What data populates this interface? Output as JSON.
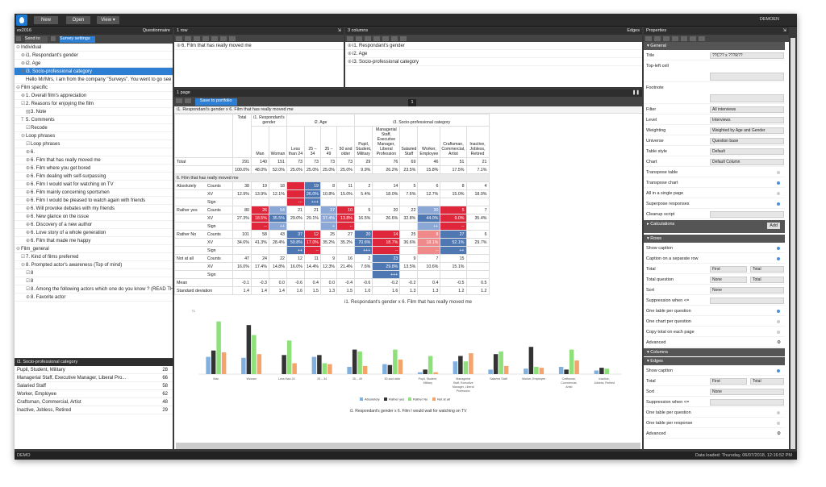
{
  "topbar": {
    "new": "New",
    "open": "Open",
    "view": "View ▾",
    "user": "DEMOEN"
  },
  "left": {
    "survey_name": "ex2016",
    "questionnaire": "Questionnaire",
    "send_to": "Send to",
    "survey_settings": "Survey settings",
    "tree": [
      {
        "t": "Individual",
        "ind": 0,
        "pm": "⊖"
      },
      {
        "t": "i1. Respondant's gender",
        "ind": 1,
        "pm": "⊕"
      },
      {
        "t": "i2. Age",
        "ind": 1,
        "pm": "⊕"
      },
      {
        "t": "i3. Socio-professional category",
        "ind": 1,
        "pm": "⊕",
        "sel": true
      },
      {
        "t": "Hello Mr/Mrs, I am from the company \"Surveys\". You went to go see",
        "ind": 1,
        "pm": ""
      },
      {
        "t": "Film specific",
        "ind": 0,
        "pm": "⊖"
      },
      {
        "t": "1. Overall film's appreciation",
        "ind": 1,
        "pm": "⊕"
      },
      {
        "t": "2. Reasons for enjoying the film",
        "ind": 1,
        "pm": "☑"
      },
      {
        "t": "3. Note",
        "ind": 2,
        "pm": "▤"
      },
      {
        "t": "5. Comments",
        "ind": 1,
        "pm": "T"
      },
      {
        "t": "Recode",
        "ind": 2,
        "pm": "☑"
      },
      {
        "t": "Loop phrases",
        "ind": 1,
        "pm": "⊖"
      },
      {
        "t": "Loop phrases",
        "ind": 2,
        "pm": "☑"
      },
      {
        "t": "6.",
        "ind": 2,
        "pm": "⊕"
      },
      {
        "t": "6. Film that has really moved me",
        "ind": 2,
        "pm": "⊕"
      },
      {
        "t": "6. Film where you get bored",
        "ind": 2,
        "pm": "⊕"
      },
      {
        "t": "6. Film dealing with self-surpassing",
        "ind": 2,
        "pm": "⊕"
      },
      {
        "t": "6. Film I would wait for watching on TV",
        "ind": 2,
        "pm": "⊕"
      },
      {
        "t": "6. Film mainly concerning sportsmen",
        "ind": 2,
        "pm": "⊕"
      },
      {
        "t": "6. Film I would be pleased to watch again with friends",
        "ind": 2,
        "pm": "⊕"
      },
      {
        "t": "6. Will provoke debates with my friends",
        "ind": 2,
        "pm": "⊕"
      },
      {
        "t": "6. New glance on the issue",
        "ind": 2,
        "pm": "⊕"
      },
      {
        "t": "6. Discovery of a new author",
        "ind": 2,
        "pm": "⊕"
      },
      {
        "t": "6. Love story of a whole generation",
        "ind": 2,
        "pm": "⊕"
      },
      {
        "t": "6. Film that made me happy",
        "ind": 2,
        "pm": "⊕"
      },
      {
        "t": "Film_general",
        "ind": 0,
        "pm": "⊖"
      },
      {
        "t": "7. Kind of films preferred",
        "ind": 1,
        "pm": "☑"
      },
      {
        "t": "8. Prompted actor's awareness (Top of mind)",
        "ind": 1,
        "pm": "⊖"
      },
      {
        "t": "8",
        "ind": 2,
        "pm": "☑"
      },
      {
        "t": "8",
        "ind": 2,
        "pm": "☑"
      },
      {
        "t": "8. Among the following actors which one do you know ? (READ TH",
        "ind": 2,
        "pm": "☑"
      },
      {
        "t": "8. Favorite actor",
        "ind": 2,
        "pm": "⊕"
      }
    ],
    "bottom_title": "i3. Socio-professional category",
    "bottom_list": [
      {
        "t": "Pupil, Student, Military",
        "n": "28"
      },
      {
        "t": "Managerial Staff, Executive Manager, Liberal Pro...",
        "n": "66"
      },
      {
        "t": "Salaried Staff",
        "n": "58"
      },
      {
        "t": "Worker, Employee",
        "n": "62"
      },
      {
        "t": "Craftsman, Commercial, Artist",
        "n": "48"
      },
      {
        "t": "Inactive, Jobless, Retired",
        "n": "29"
      }
    ]
  },
  "rows_panel": {
    "title": "1 row",
    "item": "6. Film that has really moved me"
  },
  "cols_panel": {
    "title": "3 columns",
    "edges": "Edges",
    "items": [
      "i1. Respondant's gender",
      "i2. Age",
      "i3. Socio-professional category"
    ]
  },
  "page": {
    "title": "1 page",
    "save": "Save to portfolio",
    "page_num": "1",
    "table_title": "i1. Respondant's gender x 6. Film that has really moved me"
  },
  "table": {
    "h_total": "Total",
    "h_gender": "i1. Respondant's gender",
    "h_age": "i2. Age",
    "h_socio": "i3. Socio-professional category",
    "cols": [
      "Man",
      "Woman",
      "Less than 24",
      "25 – 34",
      "35 – 49",
      "50 and older",
      "Pupil, Student, Military",
      "Managerial Staff, Executive Manager, Liberal Profession",
      "Salaried Staff",
      "Worker, Employee",
      "Craftsman, Commercial, Artist",
      "Inactive, Jobless, Retired"
    ],
    "total_label": "Total",
    "total_counts": [
      "291",
      "140",
      "151",
      "73",
      "73",
      "73",
      "73",
      "29",
      "76",
      "69",
      "46",
      "51",
      "21"
    ],
    "total_pct": [
      "100.0%",
      "48.0%",
      "52.0%",
      "25.0%",
      "25.0%",
      "25.0%",
      "25.0%",
      "9.9%",
      "26.2%",
      "23.5%",
      "15.8%",
      "17.5%",
      "7.1%"
    ],
    "section": "6. Film that has really moved me",
    "groups": [
      {
        "label": "Absolutely",
        "counts": [
          "38",
          "19",
          "18",
          "",
          "19",
          "8",
          "11",
          "2",
          "14",
          "5",
          "6",
          "8",
          "4"
        ],
        "xv": [
          "12.9%",
          "13.9%",
          "12.1%",
          "",
          "26.0%",
          "10.8%",
          "15.0%",
          "5.4%",
          "18.0%",
          "7.6%",
          "12.7%",
          "15.0%",
          "18.0%"
        ],
        "sign": [
          "",
          "",
          "",
          "---",
          "+++",
          "",
          "",
          "",
          "",
          "",
          "",
          "",
          ""
        ],
        "cc": [
          "",
          "",
          "",
          "red",
          "blue",
          "",
          "",
          "",
          "",
          "",
          "",
          "",
          ""
        ],
        "cx": [
          "",
          "",
          "",
          "red",
          "blue",
          "",
          "",
          "",
          "",
          "",
          "",
          "",
          ""
        ]
      },
      {
        "label": "Rather yes",
        "counts": [
          "80",
          "26",
          "54",
          "21",
          "21",
          "27",
          "10",
          "5",
          "20",
          "22",
          "30",
          "5",
          "7"
        ],
        "xv": [
          "27.3%",
          "18.5%",
          "35.5%",
          "29.0%",
          "29.1%",
          "37.4%",
          "13.8%",
          "16.5%",
          "26.6%",
          "32.8%",
          "44.0%",
          "9.0%",
          "35.4%"
        ],
        "sign": [
          "",
          "--",
          "++",
          "",
          "",
          "+",
          "--",
          "",
          "",
          "",
          "++",
          "--",
          ""
        ],
        "cc": [
          "",
          "red",
          "lblue",
          "",
          "",
          "lblue",
          "red",
          "",
          "",
          "",
          "lblue",
          "red",
          ""
        ],
        "cx": [
          "",
          "red",
          "blue",
          "",
          "",
          "lblue",
          "red",
          "",
          "",
          "",
          "blue",
          "red",
          ""
        ]
      },
      {
        "label": "Rather No",
        "counts": [
          "101",
          "58",
          "43",
          "37",
          "12",
          "25",
          "27",
          "20",
          "14",
          "25",
          "8",
          "27",
          "6"
        ],
        "xv": [
          "34.6%",
          "41.3%",
          "28.4%",
          "50.8%",
          "17.0%",
          "35.2%",
          "35.2%",
          "70.6%",
          "18.7%",
          "36.6%",
          "18.1%",
          "52.1%",
          "29.7%"
        ],
        "sign": [
          "",
          "",
          "",
          "++",
          "--",
          "",
          "",
          "+++",
          "--",
          "",
          "--",
          "++",
          ""
        ],
        "cc": [
          "",
          "",
          "",
          "blue",
          "red",
          "",
          "",
          "blue",
          "red",
          "",
          "lred",
          "blue",
          ""
        ],
        "cx": [
          "",
          "",
          "",
          "blue",
          "red",
          "",
          "",
          "blue",
          "red",
          "",
          "lred",
          "blue",
          ""
        ]
      },
      {
        "label": "Not at all",
        "counts": [
          "47",
          "24",
          "22",
          "12",
          "11",
          "9",
          "16",
          "2",
          "23",
          "9",
          "7",
          "15",
          ""
        ],
        "xv": [
          "16.0%",
          "17.4%",
          "14.8%",
          "16.0%",
          "14.4%",
          "12.3%",
          "21.4%",
          "7.6%",
          "29.8%",
          "13.5%",
          "10.6%",
          "15.1%",
          ""
        ],
        "sign": [
          "",
          "",
          "",
          "",
          "",
          "",
          "",
          "",
          "+++",
          "",
          "",
          "",
          ""
        ],
        "cc": [
          "",
          "",
          "",
          "",
          "",
          "",
          "",
          "",
          "blue",
          "",
          "",
          "",
          ""
        ],
        "cx": [
          "",
          "",
          "",
          "",
          "",
          "",
          "",
          "",
          "blue",
          "",
          "",
          "",
          ""
        ]
      }
    ],
    "mean_label": "Mean",
    "mean": [
      "-0.1",
      "-0.3",
      "0.0",
      "-0.6",
      "0.4",
      "0.0",
      "-0.4",
      "-0.6",
      "-0.2",
      "-0.2",
      "0.4",
      "-0.5",
      "0.5"
    ],
    "sd_label": "Standard deviation",
    "sd": [
      "1.4",
      "1.4",
      "1.4",
      "1.6",
      "1.5",
      "1.3",
      "1.5",
      "1.0",
      "1.6",
      "1.3",
      "1.3",
      "1.2",
      "1.2"
    ],
    "lbl_counts": "Counts",
    "lbl_xv": "XV",
    "lbl_sign": "Sign"
  },
  "chart_data": {
    "type": "bar",
    "title": "i1. Respondant's gender x 6. Film that has really moved me",
    "categories": [
      "Man",
      "Woman",
      "Less than 24",
      "25 – 34",
      "35 – 49",
      "50 and older",
      "Pupil, Student, Military",
      "Managerial Staff, Executive Manager, Liberal Profession",
      "Salaried Staff",
      "Worker, Employee",
      "Craftsman, Commercial, Artist",
      "Inactive, Jobless, Retired"
    ],
    "series": [
      {
        "name": "Absolutely",
        "color": "#7fb0e0",
        "values": [
          19,
          18,
          0,
          19,
          8,
          11,
          2,
          14,
          5,
          6,
          8,
          4
        ]
      },
      {
        "name": "Rather yes",
        "color": "#333333",
        "values": [
          26,
          54,
          21,
          21,
          27,
          10,
          5,
          20,
          22,
          30,
          5,
          7
        ]
      },
      {
        "name": "Rather No",
        "color": "#8ee07a",
        "values": [
          58,
          43,
          37,
          12,
          25,
          27,
          20,
          14,
          25,
          8,
          27,
          6
        ]
      },
      {
        "name": "Not at all",
        "color": "#f4a46a",
        "values": [
          24,
          22,
          12,
          11,
          9,
          16,
          2,
          23,
          9,
          7,
          15,
          0
        ]
      }
    ],
    "ylim": [
      0,
      71
    ],
    "y_ticks": [
      "71"
    ],
    "footer": "i1. Respondant's gender x 6. Film I would wait for watching on TV"
  },
  "props": {
    "title": "Properties",
    "general": "General",
    "items": [
      {
        "k": "Title",
        "v": "??C?? x ???R??",
        "type": "box"
      },
      {
        "k": "Top-left cell",
        "v": "",
        "type": "area"
      },
      {
        "k": "Footnote",
        "v": "",
        "type": "area"
      },
      {
        "k": "Filter",
        "v": "All interviews",
        "type": "sel"
      },
      {
        "k": "Level",
        "v": "Interviews",
        "type": "sel"
      },
      {
        "k": "Weighting",
        "v": "Weighted by Age and Gender",
        "type": "sel"
      },
      {
        "k": "Universe",
        "v": "Question base",
        "type": "sel"
      },
      {
        "k": "Table style",
        "v": "Default",
        "type": "sel"
      },
      {
        "k": "Chart",
        "v": "Default Column",
        "type": "sel"
      },
      {
        "k": "Transpose table",
        "v": "",
        "type": "chk"
      },
      {
        "k": "Transpose chart",
        "v": "",
        "type": "on"
      },
      {
        "k": "All in a single page",
        "v": "",
        "type": "chk"
      },
      {
        "k": "Superpose responses",
        "v": "",
        "type": "on"
      },
      {
        "k": "Cleanup script",
        "v": "",
        "type": "box"
      }
    ],
    "calculations": "Calculations",
    "add": "Add",
    "rows": "Rows",
    "row_items": [
      {
        "k": "Show caption",
        "type": "on"
      },
      {
        "k": "Caption on a separate row",
        "type": "on"
      },
      {
        "k": "Total",
        "type": "first",
        "v": "First",
        "v2": "Total"
      },
      {
        "k": "Total question",
        "type": "first",
        "v": "None",
        "v2": "Total"
      },
      {
        "k": "Sort",
        "type": "sel",
        "v": "None"
      },
      {
        "k": "Suppression when <=",
        "type": "box"
      },
      {
        "k": "One table per question",
        "type": "on"
      },
      {
        "k": "One chart per question",
        "type": "chk"
      },
      {
        "k": "Copy total on each page",
        "type": "chk"
      },
      {
        "k": "Advanced",
        "type": "gear"
      }
    ],
    "columns": "Columns",
    "edges": "Edges",
    "edge_items": [
      {
        "k": "Show caption",
        "type": "on"
      },
      {
        "k": "Total",
        "type": "first",
        "v": "First",
        "v2": "Total"
      },
      {
        "k": "Sort",
        "type": "sel",
        "v": "None"
      },
      {
        "k": "Suppression when <=",
        "type": "box"
      },
      {
        "k": "One table per question",
        "type": "chk"
      },
      {
        "k": "One table per response",
        "type": "chk"
      },
      {
        "k": "Advanced",
        "type": "gear"
      }
    ]
  },
  "status": {
    "left": "DEMO",
    "right": "Data loaded: Thursday, 06/07/2018, 12:16:52 PM"
  }
}
